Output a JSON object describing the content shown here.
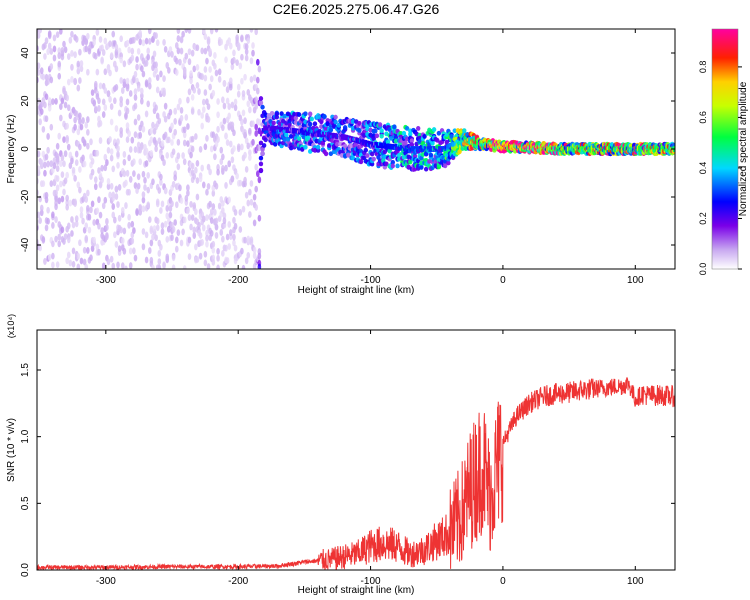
{
  "title": "C2E6.2025.275.06.47.G26",
  "chart_data": [
    {
      "type": "heatmap",
      "xlabel": "Height of straight line (km)",
      "ylabel": "Frequency (Hz)",
      "xlim": [
        -352,
        130
      ],
      "ylim": [
        -50,
        50
      ],
      "xticks": [
        -300,
        -200,
        -100,
        0,
        100
      ],
      "yticks": [
        -40,
        -20,
        0,
        20,
        40
      ],
      "colorbar": {
        "label": "Normalized spectral amplitude",
        "range": [
          0,
          0.95
        ],
        "ticks": [
          0.0,
          0.2,
          0.4,
          0.6,
          0.8
        ],
        "colormap": "rainbow (white-violet-blue-cyan-green-yellow-red-magenta)"
      },
      "description_points": [
        {
          "x": -352,
          "y": 0,
          "spread_hz": 50,
          "amplitude": 0.05
        },
        {
          "x": -190,
          "y": 0,
          "spread_hz": 50,
          "amplitude": 0.04
        },
        {
          "x": -180,
          "y": 9,
          "spread_hz": 6,
          "amplitude": 0.2
        },
        {
          "x": -150,
          "y": 7,
          "spread_hz": 8,
          "amplitude": 0.25
        },
        {
          "x": -120,
          "y": 5,
          "spread_hz": 8,
          "amplitude": 0.2
        },
        {
          "x": -100,
          "y": 2,
          "spread_hz": 9,
          "amplitude": 0.25
        },
        {
          "x": -70,
          "y": 0,
          "spread_hz": 9,
          "amplitude": 0.3
        },
        {
          "x": -45,
          "y": 0,
          "spread_hz": 8,
          "amplitude": 0.3
        },
        {
          "x": -30,
          "y": 4,
          "spread_hz": 4,
          "amplitude": 0.45
        },
        {
          "x": -15,
          "y": 2,
          "spread_hz": 2,
          "amplitude": 0.55
        },
        {
          "x": 0,
          "y": 1,
          "spread_hz": 2,
          "amplitude": 0.75
        },
        {
          "x": 50,
          "y": 0,
          "spread_hz": 2,
          "amplitude": 0.5
        },
        {
          "x": 100,
          "y": 0,
          "spread_hz": 2,
          "amplitude": 0.55
        },
        {
          "x": 130,
          "y": 0,
          "spread_hz": 2,
          "amplitude": 0.5
        }
      ]
    },
    {
      "type": "line",
      "xlabel": "Height of straight line (km)",
      "ylabel": "SNR (10 * v/v)",
      "exponent_label": "(x10⁴)",
      "xlim": [
        -352,
        130
      ],
      "ylim": [
        0,
        1.8
      ],
      "xticks": [
        -300,
        -200,
        -100,
        0,
        100
      ],
      "yticks": [
        0.0,
        0.5,
        1.0,
        1.5
      ],
      "color": "#ee3333",
      "series": [
        {
          "x": [
            -352,
            -300,
            -250,
            -200,
            -170,
            -150,
            -130,
            -110,
            -100,
            -90,
            -80,
            -70,
            -60,
            -50,
            -40,
            -35,
            -30,
            -25,
            -20,
            -15,
            -10,
            -5,
            0,
            10,
            20,
            30,
            40,
            50,
            60,
            70,
            80,
            90,
            95,
            100,
            105,
            110,
            120,
            130
          ],
          "values": [
            0.02,
            0.02,
            0.025,
            0.025,
            0.03,
            0.06,
            0.08,
            0.12,
            0.18,
            0.2,
            0.18,
            0.12,
            0.15,
            0.22,
            0.28,
            0.35,
            0.45,
            0.6,
            0.7,
            0.8,
            0.55,
            0.75,
            0.95,
            1.15,
            1.25,
            1.3,
            1.32,
            1.33,
            1.35,
            1.36,
            1.37,
            1.38,
            1.4,
            1.28,
            1.32,
            1.31,
            1.31,
            1.3
          ]
        }
      ]
    }
  ]
}
